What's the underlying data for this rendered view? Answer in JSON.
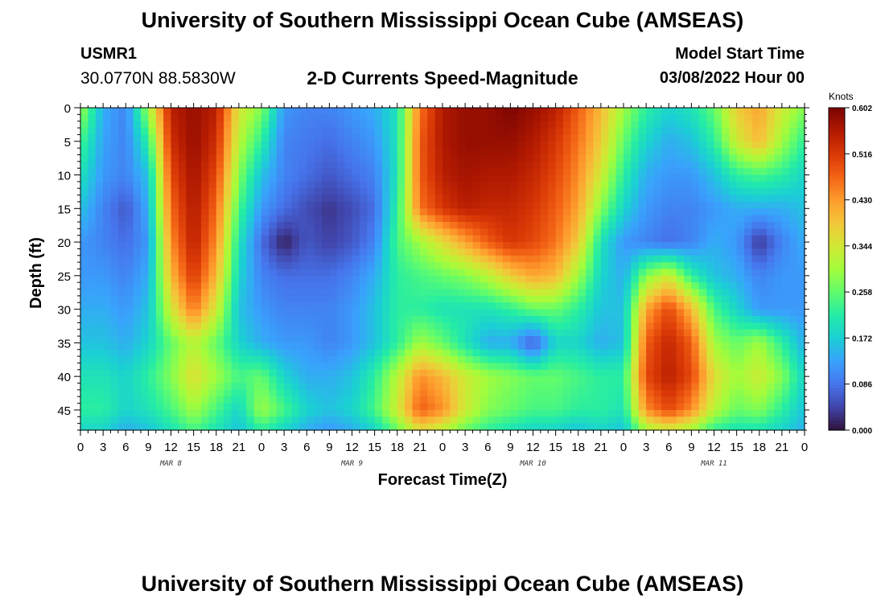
{
  "header": {
    "title": "University of Southern Mississippi Ocean Cube (AMSEAS)",
    "station_id": "USMR1",
    "station_location": "30.0770N  88.5830W",
    "subtitle": "2-D Currents Speed-Magnitude",
    "model_start_label": "Model Start Time",
    "model_start_value": "03/08/2022 Hour 00"
  },
  "footer": {
    "title": "University of Southern Mississippi Ocean Cube (AMSEAS)"
  },
  "colors": {
    "background": "#ffffff",
    "frame": "#000000",
    "colormap": [
      "#30123b",
      "#4145ab",
      "#4675ed",
      "#39a2fc",
      "#1bcfd4",
      "#24eca6",
      "#61fc6c",
      "#a4fc3b",
      "#d1e834",
      "#f3c63a",
      "#fe9b2d",
      "#f36315",
      "#d93806",
      "#b11901",
      "#7a0402"
    ]
  },
  "chart_data": {
    "type": "heatmap",
    "title": "2-D Currents Speed-Magnitude",
    "xlabel": "Forecast Time(Z)",
    "ylabel": "Depth (ft)",
    "x_range_hours": [
      0,
      96
    ],
    "ylim": [
      0,
      48
    ],
    "y_ticks": [
      0,
      5,
      10,
      15,
      20,
      25,
      30,
      35,
      40,
      45
    ],
    "x_ticks": [
      "0",
      "3",
      "6",
      "9",
      "12",
      "15",
      "18",
      "21",
      "0",
      "3",
      "6",
      "9",
      "12",
      "15",
      "18",
      "21",
      "0",
      "3",
      "6",
      "9",
      "12",
      "15",
      "18",
      "21",
      "0",
      "3",
      "6",
      "9",
      "12",
      "15",
      "18",
      "21",
      "0"
    ],
    "x_day_labels": [
      {
        "label": "MAR 8",
        "hour": 12
      },
      {
        "label": "MAR 9",
        "hour": 36
      },
      {
        "label": "MAR 10",
        "hour": 60
      },
      {
        "label": "MAR 11",
        "hour": 84
      }
    ],
    "colorbar": {
      "unit": "Knots",
      "min": 0.0,
      "max": 0.602,
      "ticks": [
        "0.602",
        "0.516",
        "0.430",
        "0.344",
        "0.258",
        "0.172",
        "0.086",
        "0.000"
      ]
    },
    "depth_levels_ft": [
      0,
      5,
      10,
      15,
      20,
      25,
      30,
      35,
      40,
      45,
      48
    ],
    "time_hours": [
      0,
      3,
      6,
      9,
      12,
      15,
      18,
      21,
      24,
      27,
      30,
      33,
      36,
      39,
      42,
      45,
      48,
      51,
      54,
      57,
      60,
      63,
      66,
      69,
      72,
      75,
      78,
      81,
      84,
      87,
      90,
      93,
      96
    ],
    "speed_knots": [
      [
        0.3,
        0.14,
        0.1,
        0.3,
        0.55,
        0.58,
        0.55,
        0.35,
        0.28,
        0.12,
        0.1,
        0.1,
        0.12,
        0.14,
        0.2,
        0.46,
        0.56,
        0.58,
        0.58,
        0.6,
        0.58,
        0.55,
        0.48,
        0.4,
        0.3,
        0.22,
        0.18,
        0.2,
        0.26,
        0.38,
        0.42,
        0.34,
        0.28
      ],
      [
        0.24,
        0.13,
        0.1,
        0.22,
        0.53,
        0.58,
        0.53,
        0.32,
        0.22,
        0.1,
        0.09,
        0.08,
        0.1,
        0.12,
        0.2,
        0.48,
        0.56,
        0.58,
        0.58,
        0.58,
        0.56,
        0.52,
        0.46,
        0.38,
        0.26,
        0.18,
        0.14,
        0.16,
        0.22,
        0.34,
        0.4,
        0.3,
        0.22
      ],
      [
        0.2,
        0.12,
        0.1,
        0.16,
        0.5,
        0.57,
        0.5,
        0.28,
        0.16,
        0.1,
        0.08,
        0.06,
        0.08,
        0.1,
        0.2,
        0.48,
        0.55,
        0.57,
        0.56,
        0.56,
        0.54,
        0.5,
        0.44,
        0.34,
        0.22,
        0.14,
        0.12,
        0.12,
        0.16,
        0.22,
        0.24,
        0.22,
        0.18
      ],
      [
        0.16,
        0.1,
        0.06,
        0.14,
        0.47,
        0.56,
        0.47,
        0.24,
        0.12,
        0.08,
        0.05,
        0.03,
        0.05,
        0.08,
        0.22,
        0.46,
        0.52,
        0.55,
        0.54,
        0.54,
        0.52,
        0.48,
        0.42,
        0.28,
        0.18,
        0.12,
        0.1,
        0.1,
        0.12,
        0.14,
        0.14,
        0.14,
        0.16
      ],
      [
        0.12,
        0.1,
        0.08,
        0.12,
        0.44,
        0.55,
        0.44,
        0.2,
        0.08,
        0.01,
        0.06,
        0.04,
        0.06,
        0.1,
        0.24,
        0.3,
        0.36,
        0.42,
        0.48,
        0.52,
        0.5,
        0.46,
        0.38,
        0.2,
        0.12,
        0.1,
        0.08,
        0.1,
        0.14,
        0.12,
        0.03,
        0.1,
        0.14
      ],
      [
        0.12,
        0.12,
        0.1,
        0.14,
        0.4,
        0.52,
        0.4,
        0.18,
        0.1,
        0.08,
        0.08,
        0.08,
        0.1,
        0.14,
        0.22,
        0.24,
        0.26,
        0.28,
        0.32,
        0.38,
        0.42,
        0.4,
        0.3,
        0.18,
        0.14,
        0.28,
        0.34,
        0.22,
        0.16,
        0.14,
        0.1,
        0.12,
        0.12
      ],
      [
        0.14,
        0.14,
        0.12,
        0.16,
        0.34,
        0.46,
        0.34,
        0.16,
        0.12,
        0.1,
        0.1,
        0.1,
        0.12,
        0.16,
        0.22,
        0.22,
        0.2,
        0.2,
        0.2,
        0.22,
        0.26,
        0.26,
        0.22,
        0.16,
        0.16,
        0.42,
        0.5,
        0.4,
        0.24,
        0.18,
        0.12,
        0.12,
        0.12
      ],
      [
        0.16,
        0.16,
        0.14,
        0.18,
        0.26,
        0.32,
        0.26,
        0.18,
        0.14,
        0.12,
        0.12,
        0.1,
        0.12,
        0.16,
        0.22,
        0.3,
        0.26,
        0.2,
        0.14,
        0.14,
        0.06,
        0.18,
        0.18,
        0.14,
        0.16,
        0.48,
        0.54,
        0.48,
        0.3,
        0.26,
        0.3,
        0.22,
        0.14
      ],
      [
        0.2,
        0.2,
        0.18,
        0.22,
        0.28,
        0.36,
        0.3,
        0.24,
        0.26,
        0.18,
        0.14,
        0.14,
        0.16,
        0.22,
        0.32,
        0.44,
        0.4,
        0.34,
        0.3,
        0.28,
        0.26,
        0.26,
        0.24,
        0.22,
        0.22,
        0.5,
        0.55,
        0.5,
        0.36,
        0.3,
        0.34,
        0.28,
        0.18
      ],
      [
        0.22,
        0.22,
        0.18,
        0.2,
        0.24,
        0.3,
        0.24,
        0.18,
        0.3,
        0.24,
        0.18,
        0.16,
        0.18,
        0.24,
        0.34,
        0.48,
        0.44,
        0.34,
        0.28,
        0.26,
        0.24,
        0.24,
        0.22,
        0.22,
        0.2,
        0.44,
        0.5,
        0.44,
        0.32,
        0.26,
        0.28,
        0.22,
        0.16
      ],
      [
        0.18,
        0.18,
        0.14,
        0.16,
        0.2,
        0.24,
        0.2,
        0.16,
        0.22,
        0.18,
        0.14,
        0.12,
        0.14,
        0.18,
        0.26,
        0.36,
        0.32,
        0.26,
        0.22,
        0.2,
        0.18,
        0.18,
        0.16,
        0.18,
        0.16,
        0.3,
        0.34,
        0.3,
        0.22,
        0.2,
        0.2,
        0.18,
        0.14
      ]
    ]
  }
}
